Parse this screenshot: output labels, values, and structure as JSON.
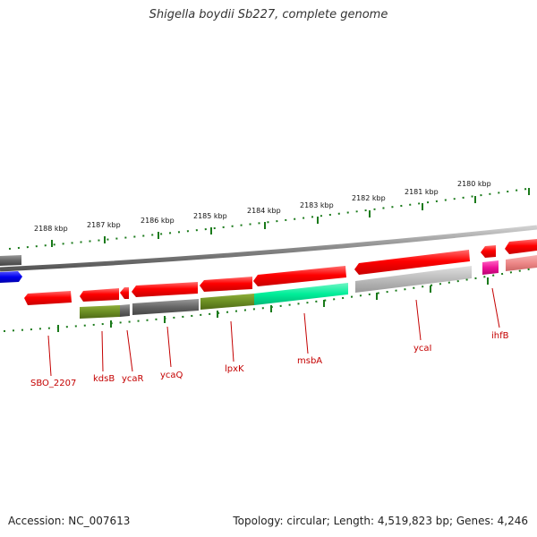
{
  "header": {
    "title": "Shigella boydii Sb227, complete genome"
  },
  "footer": {
    "accession": "Accession: NC_007613",
    "summary": "Topology: circular; Length: 4,519,823 bp; Genes: 4,246"
  },
  "ruler": {
    "labels": [
      "2188 kbp",
      "2187 kbp",
      "2186 kbp",
      "2185 kbp",
      "2184 kbp",
      "2183 kbp",
      "2182 kbp",
      "2181 kbp",
      "2180 kbp"
    ]
  },
  "genes": [
    {
      "name": "SBO_2207"
    },
    {
      "name": "kdsB"
    },
    {
      "name": "ycaR"
    },
    {
      "name": "ycaQ"
    },
    {
      "name": "lpxK"
    },
    {
      "name": "msbA"
    },
    {
      "name": "ycaI"
    },
    {
      "name": "ihfB"
    }
  ],
  "colors": {
    "gene_forward": "#ff0000",
    "ruler_ticks": "#1a7a1a",
    "backbone": "#888888",
    "blue_feature": "#0000ee",
    "cog_olive": "#6b8e23",
    "cog_gray": "#777777",
    "cog_green": "#00ee99",
    "cog_lightgray": "#bbbbbb",
    "cog_magenta": "#ee1199",
    "cog_pink": "#ee8888",
    "label_red": "#c40000"
  }
}
